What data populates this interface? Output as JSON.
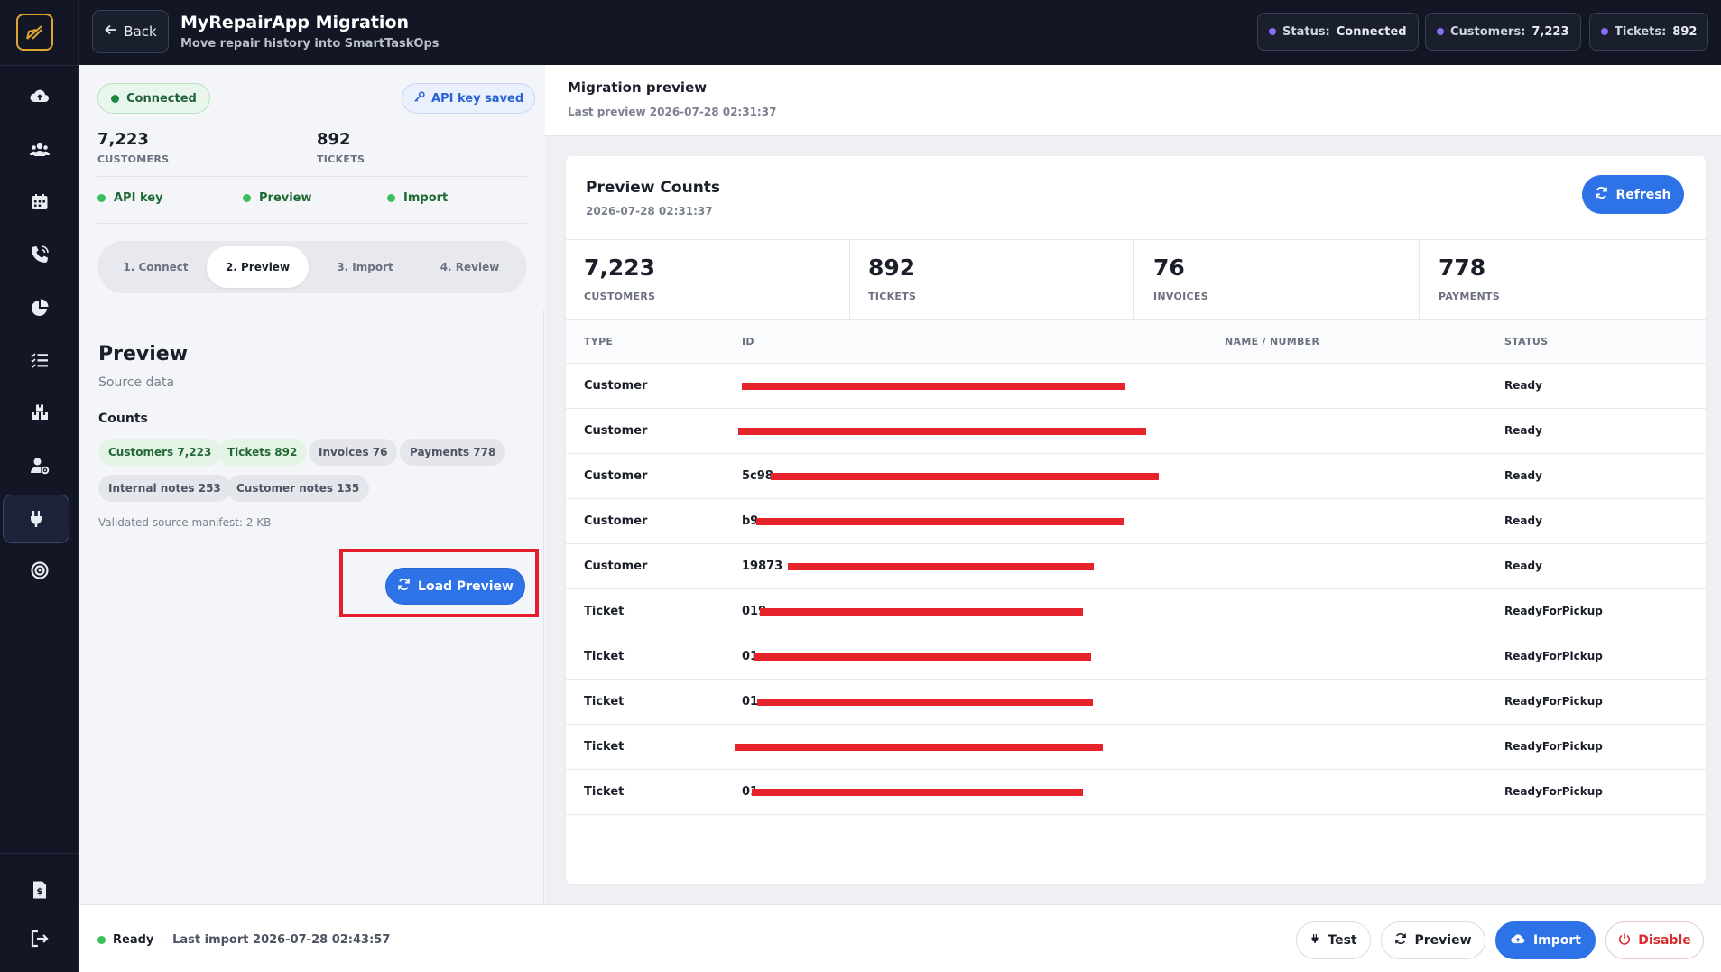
{
  "header": {
    "back_label": "Back",
    "title": "MyRepairApp Migration",
    "subtitle": "Move repair history into SmartTaskOps",
    "chips": [
      {
        "key": "Status:",
        "value": "Connected"
      },
      {
        "key": "Customers:",
        "value": "7,223"
      },
      {
        "key": "Tickets:",
        "value": "892"
      }
    ]
  },
  "sidebar": {
    "icons": [
      "logo-icon",
      "cloud-upload-icon",
      "users-icon",
      "calendar-icon",
      "phone-icon",
      "pie-chart-icon",
      "checklist-icon",
      "inventory-icon",
      "user-settings-icon",
      "plug-icon",
      "target-icon",
      "invoice-icon",
      "logout-icon"
    ],
    "active": "plug-icon"
  },
  "left": {
    "connected_label": "Connected",
    "api_label": "API key saved",
    "stats": [
      {
        "value": "7,223",
        "label": "CUSTOMERS"
      },
      {
        "value": "892",
        "label": "TICKETS"
      }
    ],
    "checks": [
      "API key",
      "Preview",
      "Import"
    ],
    "steps": [
      "1. Connect",
      "2. Preview",
      "3. Import",
      "4. Review"
    ],
    "active_step": 1,
    "preview_title": "Preview",
    "preview_sub": "Source data",
    "counts_heading": "Counts",
    "count_pills": [
      "Customers 7,223",
      "Tickets 892",
      "Invoices 76",
      "Payments 778",
      "Internal notes 253",
      "Customer notes 135"
    ],
    "manifest": "Validated source manifest: 2 KB",
    "load_preview_label": "Load Preview"
  },
  "right": {
    "title": "Migration preview",
    "subtitle": "Last preview 2026-07-28 02:31:37",
    "card_title": "Preview Counts",
    "card_sub": "2026-07-28 02:31:37",
    "refresh_label": "Refresh",
    "stats": [
      {
        "value": "7,223",
        "label": "CUSTOMERS"
      },
      {
        "value": "892",
        "label": "TICKETS"
      },
      {
        "value": "76",
        "label": "INVOICES"
      },
      {
        "value": "778",
        "label": "PAYMENTS"
      }
    ],
    "columns": [
      "TYPE",
      "ID",
      "NAME / NUMBER",
      "STATUS"
    ],
    "rows": [
      {
        "type": "Customer",
        "id": "",
        "status": "Ready"
      },
      {
        "type": "Customer",
        "id": "",
        "status": "Ready"
      },
      {
        "type": "Customer",
        "id": "5c98",
        "status": "Ready"
      },
      {
        "type": "Customer",
        "id": "b9",
        "status": "Ready"
      },
      {
        "type": "Customer",
        "id": "19873",
        "status": "Ready"
      },
      {
        "type": "Ticket",
        "id": "019",
        "status": "ReadyForPickup"
      },
      {
        "type": "Ticket",
        "id": "01",
        "status": "ReadyForPickup"
      },
      {
        "type": "Ticket",
        "id": "01",
        "status": "ReadyForPickup"
      },
      {
        "type": "Ticket",
        "id": "",
        "status": "ReadyForPickup"
      },
      {
        "type": "Ticket",
        "id": "01",
        "status": "ReadyForPickup"
      }
    ]
  },
  "footer": {
    "status": "Ready",
    "sep": "-",
    "last_import": "Last import 2026-07-28 02:43:57",
    "buttons": [
      "Test",
      "Preview",
      "Import",
      "Disable"
    ]
  },
  "colors": {
    "accent": "#2d72e6",
    "sidebar": "#121625",
    "success": "#3bbf5c",
    "danger": "#d92d2d",
    "redaction": "#e6222a"
  }
}
